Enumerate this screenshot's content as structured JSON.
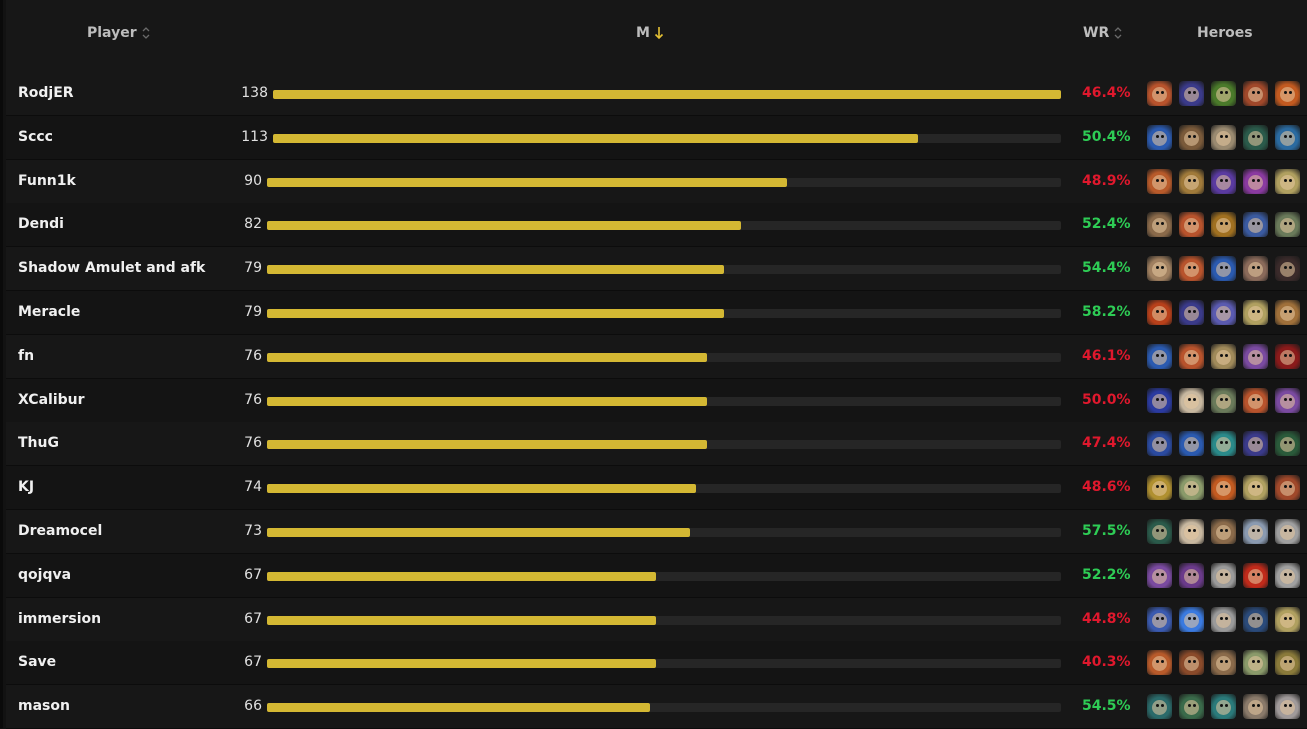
{
  "header": {
    "player_label": "Player",
    "m_label": "M",
    "wr_label": "WR",
    "heroes_label": "Heroes"
  },
  "colors": {
    "bar": "#d4b833",
    "win": "#2ecc55",
    "loss": "#e0182d",
    "sort_active": "#e6c234"
  },
  "max_m": 138,
  "rows": [
    {
      "player": "RodjER",
      "m": "138",
      "wr": "46.4%",
      "wr_status": "loss",
      "heroes": [
        {
          "icon": "hero-portrait-icon",
          "color": "#b8532c"
        },
        {
          "icon": "hero-portrait-icon",
          "color": "#3a3a8a"
        },
        {
          "icon": "hero-portrait-icon",
          "color": "#4a7a2a"
        },
        {
          "icon": "hero-portrait-icon",
          "color": "#a0482a"
        },
        {
          "icon": "hero-portrait-icon",
          "color": "#c25a20"
        }
      ]
    },
    {
      "player": "Sccc",
      "m": "113",
      "wr": "50.4%",
      "wr_status": "win",
      "heroes": [
        {
          "icon": "hero-portrait-icon",
          "color": "#2a5ab0"
        },
        {
          "icon": "hero-portrait-icon",
          "color": "#7a5a3a"
        },
        {
          "icon": "hero-portrait-icon",
          "color": "#9a8a70"
        },
        {
          "icon": "hero-portrait-icon",
          "color": "#2a5a4a"
        },
        {
          "icon": "hero-portrait-icon",
          "color": "#2a6aa0"
        }
      ]
    },
    {
      "player": "Funn1k",
      "m": "90",
      "wr": "48.9%",
      "wr_status": "loss",
      "heroes": [
        {
          "icon": "hero-portrait-icon",
          "color": "#b85a2a"
        },
        {
          "icon": "hero-portrait-icon",
          "color": "#a07a3a"
        },
        {
          "icon": "hero-portrait-icon",
          "color": "#5a3aa0"
        },
        {
          "icon": "hero-portrait-icon",
          "color": "#8a3aa0"
        },
        {
          "icon": "hero-portrait-icon",
          "color": "#b0a060"
        }
      ]
    },
    {
      "player": "Dendi",
      "m": "82",
      "wr": "52.4%",
      "wr_status": "win",
      "heroes": [
        {
          "icon": "hero-portrait-icon",
          "color": "#8a6a4a"
        },
        {
          "icon": "hero-portrait-icon",
          "color": "#b8532c"
        },
        {
          "icon": "hero-portrait-icon",
          "color": "#a07020"
        },
        {
          "icon": "hero-portrait-icon",
          "color": "#3a5aa0"
        },
        {
          "icon": "hero-portrait-icon",
          "color": "#6a7a5a"
        }
      ]
    },
    {
      "player": "Shadow Amulet and afk",
      "m": "79",
      "wr": "54.4%",
      "wr_status": "win",
      "heroes": [
        {
          "icon": "hero-portrait-icon",
          "color": "#a08060"
        },
        {
          "icon": "hero-portrait-icon",
          "color": "#b8532c"
        },
        {
          "icon": "hero-portrait-icon",
          "color": "#2a5ab0"
        },
        {
          "icon": "hero-portrait-icon",
          "color": "#8a6a5a"
        },
        {
          "icon": "hero-portrait-icon",
          "color": "#3a2a2a"
        }
      ]
    },
    {
      "player": "Meracle",
      "m": "79",
      "wr": "58.2%",
      "wr_status": "win",
      "heroes": [
        {
          "icon": "hero-portrait-icon",
          "color": "#b8401a"
        },
        {
          "icon": "hero-portrait-icon",
          "color": "#3a3a8a"
        },
        {
          "icon": "hero-portrait-icon",
          "color": "#5a5ab0"
        },
        {
          "icon": "hero-portrait-icon",
          "color": "#b0a060"
        },
        {
          "icon": "hero-portrait-icon",
          "color": "#a0703a"
        }
      ]
    },
    {
      "player": "fn",
      "m": "76",
      "wr": "46.1%",
      "wr_status": "loss",
      "heroes": [
        {
          "icon": "hero-portrait-icon",
          "color": "#2a5ab0"
        },
        {
          "icon": "hero-portrait-icon",
          "color": "#b8532c"
        },
        {
          "icon": "hero-portrait-icon",
          "color": "#a08a5a"
        },
        {
          "icon": "hero-portrait-icon",
          "color": "#7a4aa0"
        },
        {
          "icon": "hero-portrait-icon",
          "color": "#8a1a1a"
        }
      ]
    },
    {
      "player": "XCalibur",
      "m": "76",
      "wr": "50.0%",
      "wr_status": "loss",
      "heroes": [
        {
          "icon": "hero-portrait-icon",
          "color": "#2a3aa0"
        },
        {
          "icon": "hero-portrait-icon",
          "color": "#c8b8a0"
        },
        {
          "icon": "hero-portrait-icon",
          "color": "#6a7a5a"
        },
        {
          "icon": "hero-portrait-icon",
          "color": "#b8532c"
        },
        {
          "icon": "hero-portrait-icon",
          "color": "#7a4aa0"
        }
      ]
    },
    {
      "player": "ThuG",
      "m": "76",
      "wr": "47.4%",
      "wr_status": "loss",
      "heroes": [
        {
          "icon": "hero-portrait-icon",
          "color": "#2a4aa0"
        },
        {
          "icon": "hero-portrait-icon",
          "color": "#2a5ab0"
        },
        {
          "icon": "hero-portrait-icon",
          "color": "#2a8a8a"
        },
        {
          "icon": "hero-portrait-icon",
          "color": "#3a3a8a"
        },
        {
          "icon": "hero-portrait-icon",
          "color": "#2a5a3a"
        }
      ]
    },
    {
      "player": "KJ",
      "m": "74",
      "wr": "48.6%",
      "wr_status": "loss",
      "heroes": [
        {
          "icon": "hero-portrait-icon",
          "color": "#b09030"
        },
        {
          "icon": "hero-portrait-icon",
          "color": "#8a9a6a"
        },
        {
          "icon": "hero-portrait-icon",
          "color": "#c25a20"
        },
        {
          "icon": "hero-portrait-icon",
          "color": "#b0a060"
        },
        {
          "icon": "hero-portrait-icon",
          "color": "#a0482a"
        }
      ]
    },
    {
      "player": "Dreamocel",
      "m": "73",
      "wr": "57.5%",
      "wr_status": "win",
      "heroes": [
        {
          "icon": "hero-portrait-icon",
          "color": "#2a5a4a"
        },
        {
          "icon": "hero-portrait-icon",
          "color": "#c8b8a0"
        },
        {
          "icon": "hero-portrait-icon",
          "color": "#8a6a4a"
        },
        {
          "icon": "hero-portrait-icon",
          "color": "#8a9ab0"
        },
        {
          "icon": "hero-portrait-icon",
          "color": "#a0a0a0"
        }
      ]
    },
    {
      "player": "qojqva",
      "m": "67",
      "wr": "52.2%",
      "wr_status": "win",
      "heroes": [
        {
          "icon": "hero-portrait-icon",
          "color": "#7a4aa0"
        },
        {
          "icon": "hero-portrait-icon",
          "color": "#6a3a8a"
        },
        {
          "icon": "hero-portrait-icon",
          "color": "#9a9a9a"
        },
        {
          "icon": "hero-portrait-icon",
          "color": "#c02a1a"
        },
        {
          "icon": "hero-portrait-icon",
          "color": "#a0a0a0"
        }
      ]
    },
    {
      "player": "immersion",
      "m": "67",
      "wr": "44.8%",
      "wr_status": "loss",
      "heroes": [
        {
          "icon": "hero-portrait-icon",
          "color": "#3a5ab0"
        },
        {
          "icon": "hero-portrait-icon",
          "color": "#3a7ae0"
        },
        {
          "icon": "hero-portrait-icon",
          "color": "#9a9a9a"
        },
        {
          "icon": "hero-portrait-icon",
          "color": "#2a4a7a"
        },
        {
          "icon": "hero-portrait-icon",
          "color": "#b0a060"
        }
      ]
    },
    {
      "player": "Save",
      "m": "67",
      "wr": "40.3%",
      "wr_status": "loss",
      "heroes": [
        {
          "icon": "hero-portrait-icon",
          "color": "#b85a2a"
        },
        {
          "icon": "hero-portrait-icon",
          "color": "#8a4a2a"
        },
        {
          "icon": "hero-portrait-icon",
          "color": "#8a6a4a"
        },
        {
          "icon": "hero-portrait-icon",
          "color": "#8a9a6a"
        },
        {
          "icon": "hero-portrait-icon",
          "color": "#8a7a3a"
        }
      ]
    },
    {
      "player": "mason",
      "m": "66",
      "wr": "54.5%",
      "wr_status": "win",
      "heroes": [
        {
          "icon": "hero-portrait-icon",
          "color": "#2a6a6a"
        },
        {
          "icon": "hero-portrait-icon",
          "color": "#3a6a4a"
        },
        {
          "icon": "hero-portrait-icon",
          "color": "#2a7a7a"
        },
        {
          "icon": "hero-portrait-icon",
          "color": "#8a7a6a"
        },
        {
          "icon": "hero-portrait-icon",
          "color": "#a09a9a"
        }
      ]
    }
  ]
}
